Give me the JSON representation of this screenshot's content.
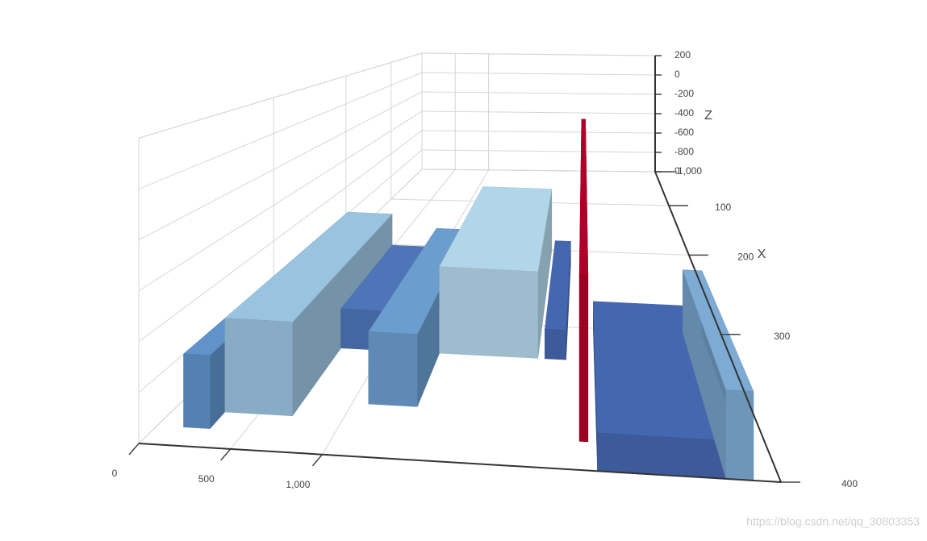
{
  "chart_data": {
    "type": "surface3d",
    "xlim": [
      0,
      400
    ],
    "xticks": [
      0,
      100,
      200,
      300,
      400
    ],
    "x_title": "X",
    "ylim": [
      0,
      3500
    ],
    "yticks": [
      0,
      500,
      {
        "value": 1000,
        "label": "1,000"
      }
    ],
    "zlim": [
      -1000,
      200
    ],
    "zticks": [
      200,
      0,
      -200,
      -400,
      -600,
      -800,
      {
        "value": -1000,
        "label": "-1,000"
      }
    ],
    "z_title": "Z",
    "grid": true,
    "colorscale": [
      [
        -1000,
        "#2b3a94"
      ],
      [
        -700,
        "#5f93c9"
      ],
      [
        -550,
        "#b8dbeb"
      ],
      [
        -300,
        "#b0002a"
      ]
    ],
    "blocks": [
      {
        "y": [
          150,
          300
        ],
        "x": [
          300,
          390
        ],
        "z": -700
      },
      {
        "y": [
          300,
          700
        ],
        "x": [
          250,
          380
        ],
        "z": -600
      },
      {
        "y": [
          700,
          1100
        ],
        "x": [
          250,
          330
        ],
        "z": -800
      },
      {
        "y": [
          1100,
          1400
        ],
        "x": [
          250,
          370
        ],
        "z": -680
      },
      {
        "y": [
          1400,
          2100
        ],
        "x": [
          200,
          330
        ],
        "z": -560
      },
      {
        "y": [
          2150,
          2300
        ],
        "x": [
          220,
          330
        ],
        "z": -850
      },
      {
        "y": [
          2400,
          2450
        ],
        "x": [
          80,
          385
        ],
        "z": -300
      },
      {
        "y": [
          2500,
          3200
        ],
        "x": [
          300,
          400
        ],
        "z": -850
      },
      {
        "y": [
          3200,
          3350
        ],
        "x": [
          300,
          400
        ],
        "z": -650
      }
    ]
  },
  "watermark": "https://blog.csdn.net/qq_30803353"
}
